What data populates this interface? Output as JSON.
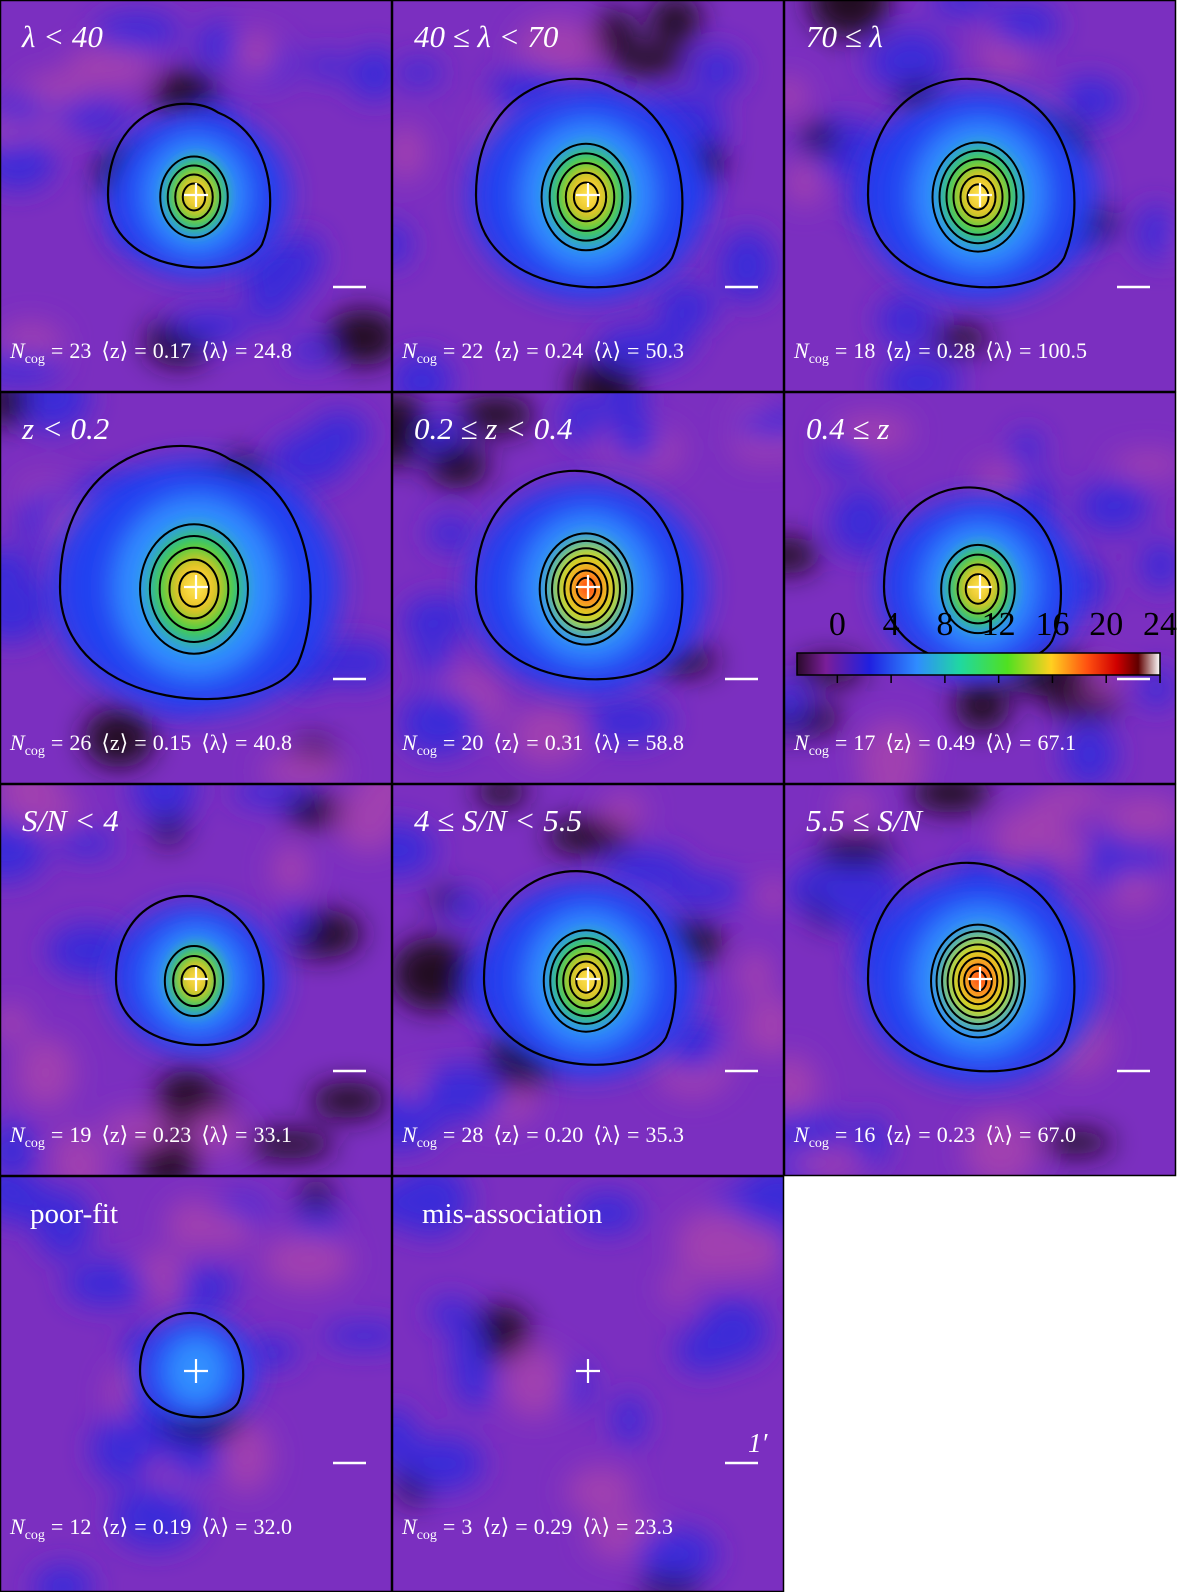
{
  "stat_labels": {
    "n": "N",
    "cog": "cog",
    "z": "⟨z⟩",
    "lambda": "⟨λ⟩",
    "eq": "="
  },
  "scale_label": "1′",
  "panels": [
    {
      "title": "λ < 40",
      "n": "23",
      "z": "0.17",
      "lambda": "24.8"
    },
    {
      "title": "40 ≤ λ < 70",
      "n": "22",
      "z": "0.24",
      "lambda": "50.3"
    },
    {
      "title": "70 ≤ λ",
      "n": "18",
      "z": "0.28",
      "lambda": "100.5"
    },
    {
      "title": "z < 0.2",
      "n": "26",
      "z": "0.15",
      "lambda": "40.8"
    },
    {
      "title": "0.2 ≤ z < 0.4",
      "n": "20",
      "z": "0.31",
      "lambda": "58.8"
    },
    {
      "title": "0.4 ≤ z",
      "n": "17",
      "z": "0.49",
      "lambda": "67.1"
    },
    {
      "title": "S/N < 4",
      "n": "19",
      "z": "0.23",
      "lambda": "33.1"
    },
    {
      "title": "4 ≤ S/N < 5.5",
      "n": "28",
      "z": "0.20",
      "lambda": "35.3"
    },
    {
      "title": "5.5 ≤ S/N",
      "n": "16",
      "z": "0.23",
      "lambda": "67.0"
    },
    {
      "title": "poor-fit",
      "n": "12",
      "z": "0.19",
      "lambda": "32.0"
    },
    {
      "title": "mis-association",
      "n": "3",
      "z": "0.29",
      "lambda": "23.3"
    }
  ],
  "colorbar": {
    "lim": [
      -3,
      24
    ],
    "ticks": [
      0,
      4,
      8,
      12,
      16,
      20,
      24
    ]
  }
}
